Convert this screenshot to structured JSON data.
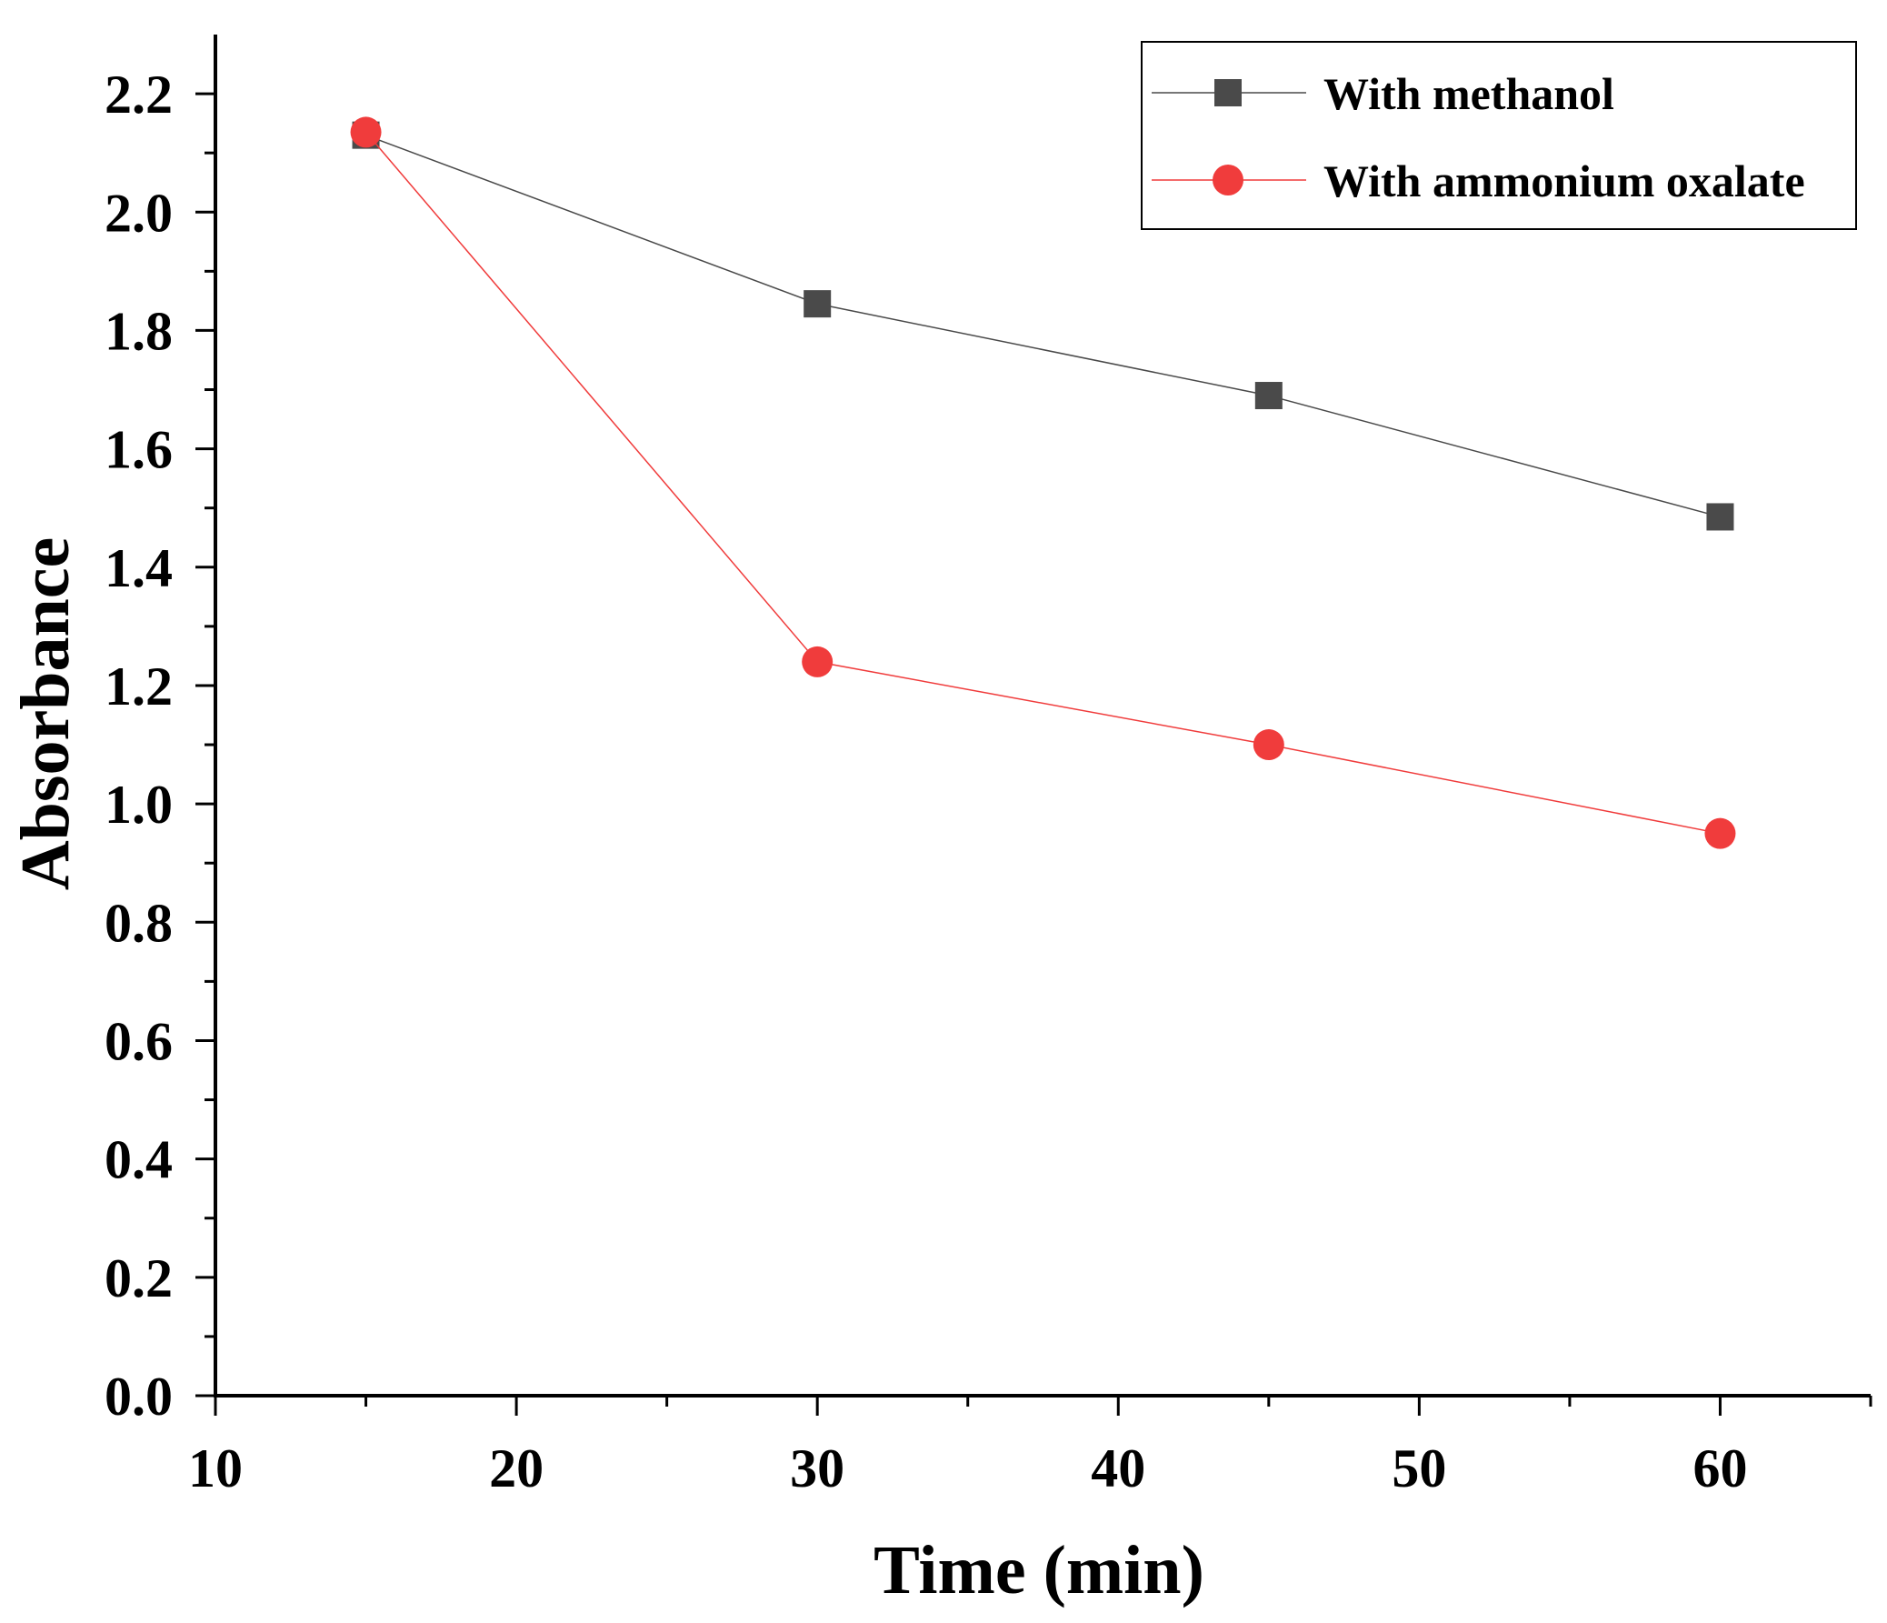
{
  "chart_data": {
    "type": "line",
    "title": "",
    "xlabel": "Time (min)",
    "ylabel": "Absorbance",
    "xlim": [
      10,
      65
    ],
    "ylim": [
      0,
      2.3
    ],
    "x_ticks": [
      "10",
      "20",
      "30",
      "40",
      "50",
      "60"
    ],
    "y_ticks": [
      "0.0",
      "0.2",
      "0.4",
      "0.6",
      "0.8",
      "1.0",
      "1.2",
      "1.4",
      "1.6",
      "1.8",
      "2.0",
      "2.2"
    ],
    "grid": false,
    "legend_position": "top-right",
    "series": [
      {
        "name": "With methanol",
        "marker": "square",
        "color": "#4a4a4a",
        "x": [
          15,
          30,
          45,
          60
        ],
        "values": [
          2.13,
          1.845,
          1.69,
          1.485
        ]
      },
      {
        "name": "With ammonium oxalate",
        "marker": "circle",
        "color": "#f03c3c",
        "x": [
          15,
          30,
          45,
          60
        ],
        "values": [
          2.135,
          1.24,
          1.1,
          0.95
        ]
      }
    ]
  }
}
